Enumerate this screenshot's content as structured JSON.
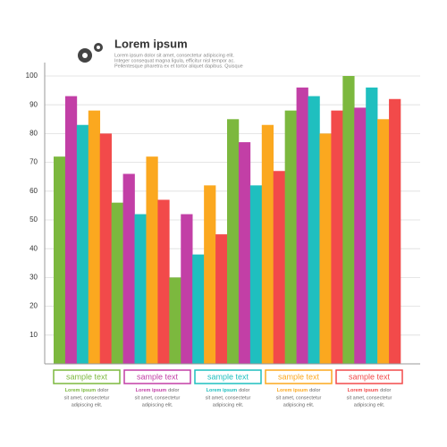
{
  "chart_data": {
    "type": "bar",
    "title": "Lorem ipsum",
    "subtitle": [
      "Lorem ipsum dolor sit amet, consectetur adipiscing elit.",
      "Integer consequat magna ligula, efficitur nisl tempor ac.",
      "Pellentesque pharetra ex et tortor aliquet dapibus. Quisque"
    ],
    "categories": [
      null,
      null,
      null,
      null,
      null,
      null
    ],
    "series": [
      {
        "name": "sample text",
        "color": "#7cb83e",
        "values": [
          72,
          56,
          30,
          85,
          88,
          100
        ],
        "note_lead": "Lorem ipsum",
        "note": [
          "dolor",
          "sit amet, consectetur",
          "adipiscing elit."
        ]
      },
      {
        "name": "sample text",
        "color": "#c23fa6",
        "values": [
          93,
          66,
          52,
          77,
          96,
          89
        ],
        "note_lead": "Lorem ipsum",
        "note": [
          "dolor",
          "sit amet, consectetur",
          "adipiscing elit."
        ]
      },
      {
        "name": "sample text",
        "color": "#1fbfbf",
        "values": [
          83,
          52,
          38,
          62,
          93,
          96
        ],
        "note_lead": "Lorem ipsum",
        "note": [
          "dolor",
          "sit amet, consectetur",
          "adipiscing elit."
        ]
      },
      {
        "name": "sample text",
        "color": "#fba81f",
        "values": [
          88,
          72,
          62,
          83,
          80,
          85
        ],
        "note_lead": "Lorem ipsum",
        "note": [
          "dolor",
          "sit amet, consectetur",
          "adipiscing elit."
        ]
      },
      {
        "name": "sample text",
        "color": "#f24a4a",
        "values": [
          80,
          57,
          45,
          67,
          88,
          92
        ],
        "note_lead": "Lorem ipsum",
        "note": [
          "dolor",
          "sit amet, consectetur",
          "adipiscing elit."
        ]
      }
    ],
    "ylim": [
      0,
      100
    ],
    "yticks": [
      10,
      20,
      30,
      40,
      50,
      60,
      70,
      80,
      90,
      100
    ],
    "grid": true
  }
}
